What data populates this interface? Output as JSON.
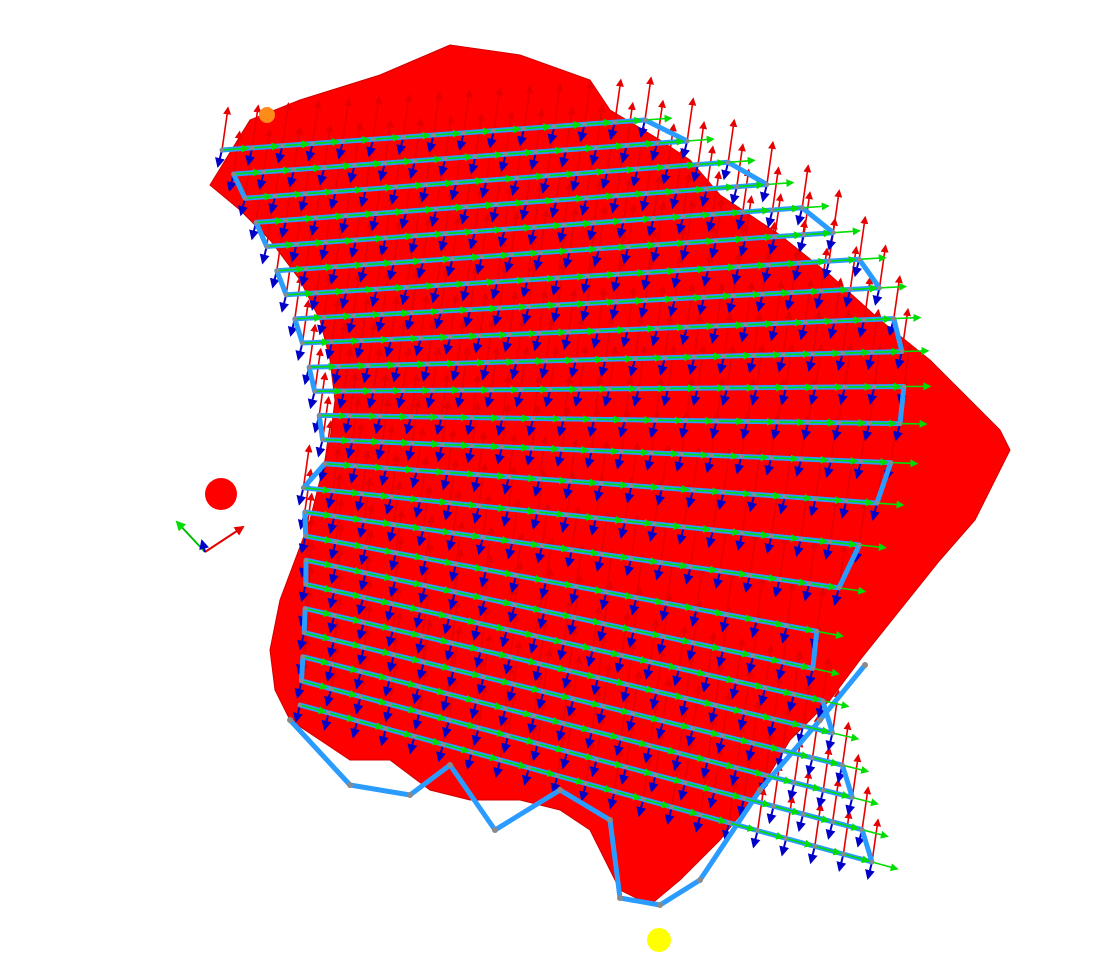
{
  "scene": {
    "background": "#ffffff",
    "surface_color": "#ff0000",
    "surface_edge_color": "#d00000",
    "toolpath_color": "#2b9cff",
    "vertex_color": "#8a8a8a",
    "arrow_colors": {
      "normal": "#e60000",
      "tangent": "#00dd00",
      "binormal": "#0000c8"
    },
    "rows": 24,
    "marker_colors": {
      "start": "#ff8c1a",
      "end": "#ffff00",
      "reference": "#ff0000"
    },
    "axis_gizmo": {
      "icons": [
        "x-axis-arrow",
        "y-axis-arrow",
        "z-axis-arrow"
      ]
    }
  }
}
